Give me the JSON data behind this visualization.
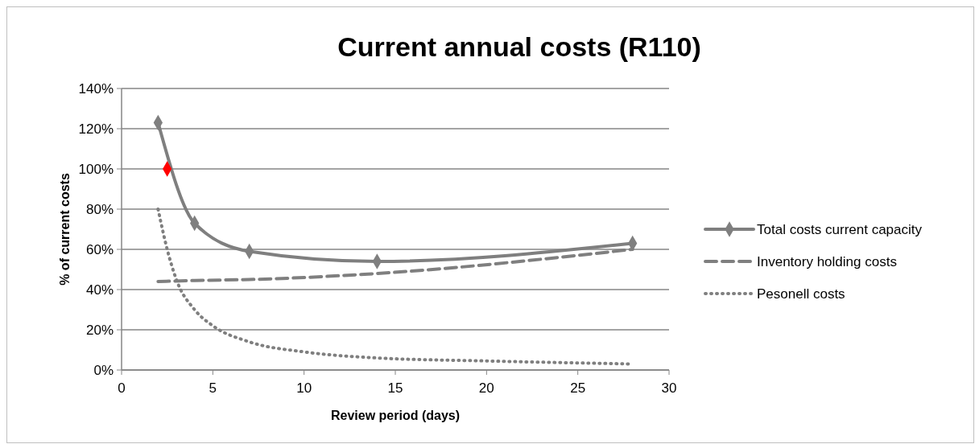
{
  "chart_data": {
    "type": "line",
    "title": "Current annual costs (R110)",
    "xlabel": "Review period (days)",
    "ylabel": "% of current costs",
    "xlim": [
      0,
      30
    ],
    "xticks": [
      0,
      5,
      10,
      15,
      20,
      25,
      30
    ],
    "ylim": [
      0,
      140
    ],
    "yticks": [
      {
        "value": 0,
        "label": "0%"
      },
      {
        "value": 20,
        "label": "20%"
      },
      {
        "value": 40,
        "label": "40%"
      },
      {
        "value": 60,
        "label": "60%"
      },
      {
        "value": 80,
        "label": "80%"
      },
      {
        "value": 100,
        "label": "100%"
      },
      {
        "value": 120,
        "label": "120%"
      },
      {
        "value": 140,
        "label": "140%"
      }
    ],
    "grid": "y",
    "legend": "right",
    "series": [
      {
        "name": "Total costs current capacity",
        "color": "#7f7f7f",
        "marker": "diamond",
        "line_style": "solid",
        "x": [
          2,
          4,
          7,
          14,
          28
        ],
        "values": [
          123,
          73,
          59,
          54,
          63
        ]
      },
      {
        "name": "Inventory holding costs",
        "color": "#7f7f7f",
        "marker": "none",
        "line_style": "dashed",
        "x": [
          2,
          4,
          7,
          14,
          28
        ],
        "values": [
          44,
          44.5,
          45,
          48,
          60
        ]
      },
      {
        "name": "Pesonell costs",
        "color": "#7f7f7f",
        "marker": "none",
        "line_style": "dotted",
        "x": [
          2,
          2.5,
          3,
          4,
          5,
          7,
          10,
          14,
          20,
          28
        ],
        "values": [
          80,
          60,
          45,
          30,
          22,
          14,
          9,
          6,
          4.5,
          3
        ]
      },
      {
        "type": "scatter",
        "color": "#ff0000",
        "marker": "diamond",
        "x": [
          2.5
        ],
        "values": [
          100
        ]
      }
    ]
  }
}
